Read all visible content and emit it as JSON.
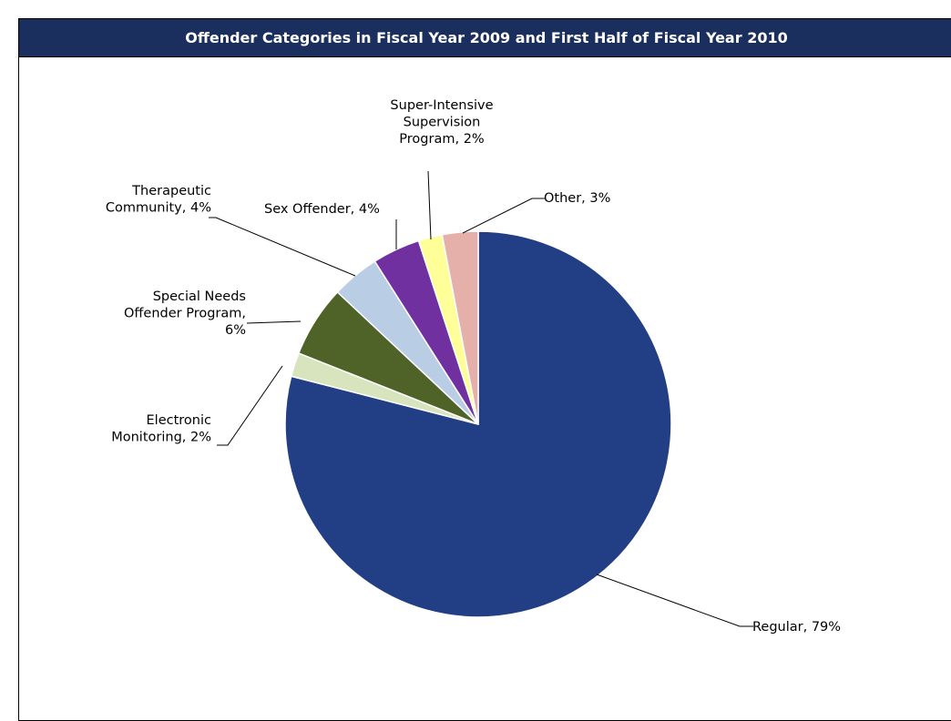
{
  "chart_data": {
    "type": "pie",
    "title": "Offender Categories in Fiscal Year 2009 and First Half of Fiscal Year 2010",
    "colors": {
      "title_bar": "#1b2f5e"
    },
    "slices": [
      {
        "name": "Regular",
        "value": 79,
        "color": "#223f85",
        "label_lines": [
          "Regular, 79%"
        ]
      },
      {
        "name": "Electronic Monitoring",
        "value": 2,
        "color": "#d7e4bd",
        "label_lines": [
          "Electronic",
          "Monitoring, 2%"
        ]
      },
      {
        "name": "Special Needs Offender Program",
        "value": 6,
        "color": "#4f6228",
        "label_lines": [
          "Special Needs",
          "Offender Program,",
          "6%"
        ]
      },
      {
        "name": "Therapeutic Community",
        "value": 4,
        "color": "#b9cde5",
        "label_lines": [
          "Therapeutic",
          "Community, 4%"
        ]
      },
      {
        "name": "Sex Offender",
        "value": 4,
        "color": "#7030a0",
        "label_lines": [
          "Sex Offender, 4%"
        ]
      },
      {
        "name": "Super-Intensive Supervision Program",
        "value": 2,
        "color": "#ffff99",
        "label_lines": [
          "Super-Intensive",
          "Supervision",
          "Program, 2%"
        ]
      },
      {
        "name": "Other",
        "value": 3,
        "color": "#e6b0aa",
        "label_lines": [
          "Other, 3%"
        ]
      }
    ]
  }
}
